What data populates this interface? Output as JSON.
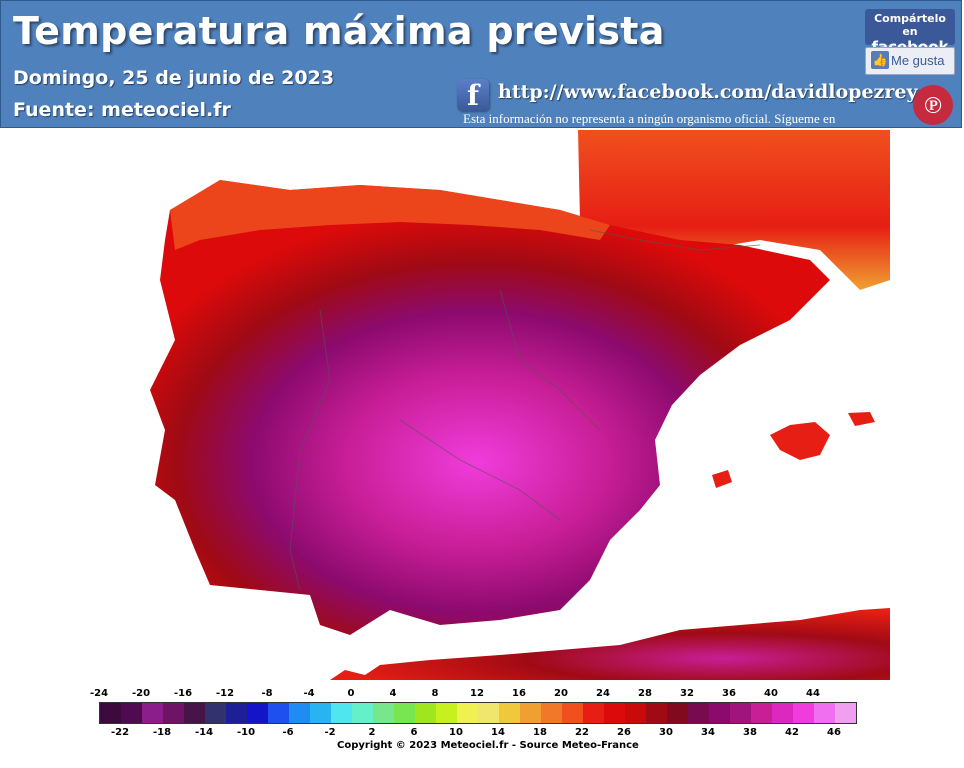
{
  "header": {
    "title": "Temperatura máxima prevista",
    "date": "Domingo, 25 de junio de 2023",
    "source": "Fuente:  meteociel.fr",
    "facebook_url": "http://www.facebook.com/davidlopezrey",
    "disclaimer": "Esta información no representa a ningún organismo oficial. Sígueme en",
    "share_line1": "Compártelo en",
    "share_line2": "facebook",
    "like_label": "Me gusta",
    "fb_icon": "facebook-icon",
    "logo_icon": "author-logo-icon"
  },
  "map": {
    "region": "Península Ibérica",
    "variable": "temperatura máxima (°C)"
  },
  "legend": {
    "top_labels": [
      "-24",
      "-20",
      "-16",
      "-12",
      "-8",
      "-4",
      "0",
      "4",
      "8",
      "12",
      "16",
      "20",
      "24",
      "28",
      "32",
      "36",
      "40",
      "44"
    ],
    "bottom_labels": [
      "-22",
      "-18",
      "-14",
      "-10",
      "-6",
      "-2",
      "2",
      "6",
      "10",
      "14",
      "18",
      "22",
      "26",
      "30",
      "34",
      "38",
      "42",
      "46"
    ],
    "colors": [
      "#3c0a3c",
      "#500a50",
      "#8c1e8c",
      "#6e1464",
      "#461446",
      "#32326e",
      "#1e1e96",
      "#1414c8",
      "#1e50f0",
      "#1e8cf0",
      "#28b4f0",
      "#50e6f0",
      "#64f0c8",
      "#78e68c",
      "#78e650",
      "#a0e61e",
      "#c8f01e",
      "#f0f050",
      "#f0e66e",
      "#f0c83c",
      "#f0a032",
      "#f07828",
      "#f0501e",
      "#e61e14",
      "#dc0a0a",
      "#c80a0a",
      "#a00a14",
      "#820a1e",
      "#780a50",
      "#8c0a6e",
      "#a0147d",
      "#c81e96",
      "#dc28be",
      "#f03cdc",
      "#f06ef0",
      "#f0a0f0"
    ],
    "copyright": "Copyright © 2023 Meteociel.fr - Source Meteo-France"
  }
}
